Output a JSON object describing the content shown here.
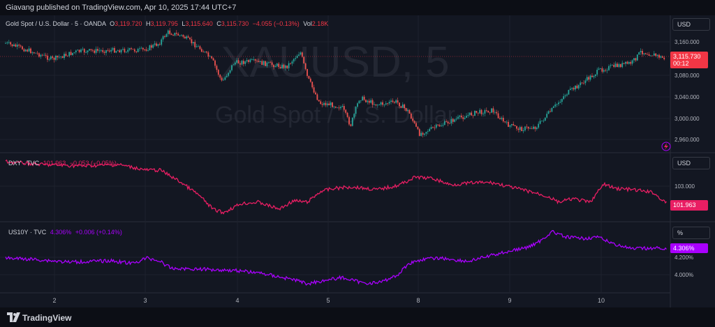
{
  "header": {
    "published": "Giavang published on TradingView.com, Apr 10, 2025 17:44 UTC+7"
  },
  "watermark": {
    "symbol": "XAUUSD, 5",
    "name": "Gold Spot / U.S. Dollar"
  },
  "panes": {
    "gold": {
      "title": "Gold Spot / U.S. Dollar · 5 · OANDA",
      "o_label": "O",
      "o": "3,119.720",
      "h_label": "H",
      "h": "3,119.795",
      "l_label": "L",
      "l": "3,115.640",
      "c_label": "C",
      "c": "3,115.730",
      "change": "−4.055 (−0.13%)",
      "vol_label": "Vol",
      "vol": "2.18K",
      "unit": "USD",
      "last_price": "3,115.730",
      "countdown": "00:12",
      "axis_labels": [
        "3,160.000",
        "3,080.000",
        "3,040.000",
        "3,000.000",
        "2,960.000"
      ]
    },
    "dxy": {
      "title": "DXY · TVC",
      "value": "101.963",
      "change": "−0.053 (−0.05%)",
      "unit": "USD",
      "last_price": "101.963",
      "axis_labels": [
        "103.000"
      ]
    },
    "us10y": {
      "title": "US10Y · TVC",
      "value": "4.306%",
      "change": "+0.006 (+0.14%)",
      "unit": "%",
      "last_price": "4.306%",
      "axis_labels": [
        "4.200%",
        "4.000%"
      ]
    }
  },
  "time_axis": [
    "2",
    "3",
    "4",
    "5",
    "8",
    "9",
    "10"
  ],
  "footer": {
    "brand": "TradingView"
  },
  "colors": {
    "up": "#26a69a",
    "down": "#ef5350",
    "dxy": "#e91e63",
    "us10y": "#aa00ff",
    "last": "#f23645"
  },
  "icons": {
    "lightning": "lightning-icon",
    "logo": "tradingview-logo-icon"
  }
}
